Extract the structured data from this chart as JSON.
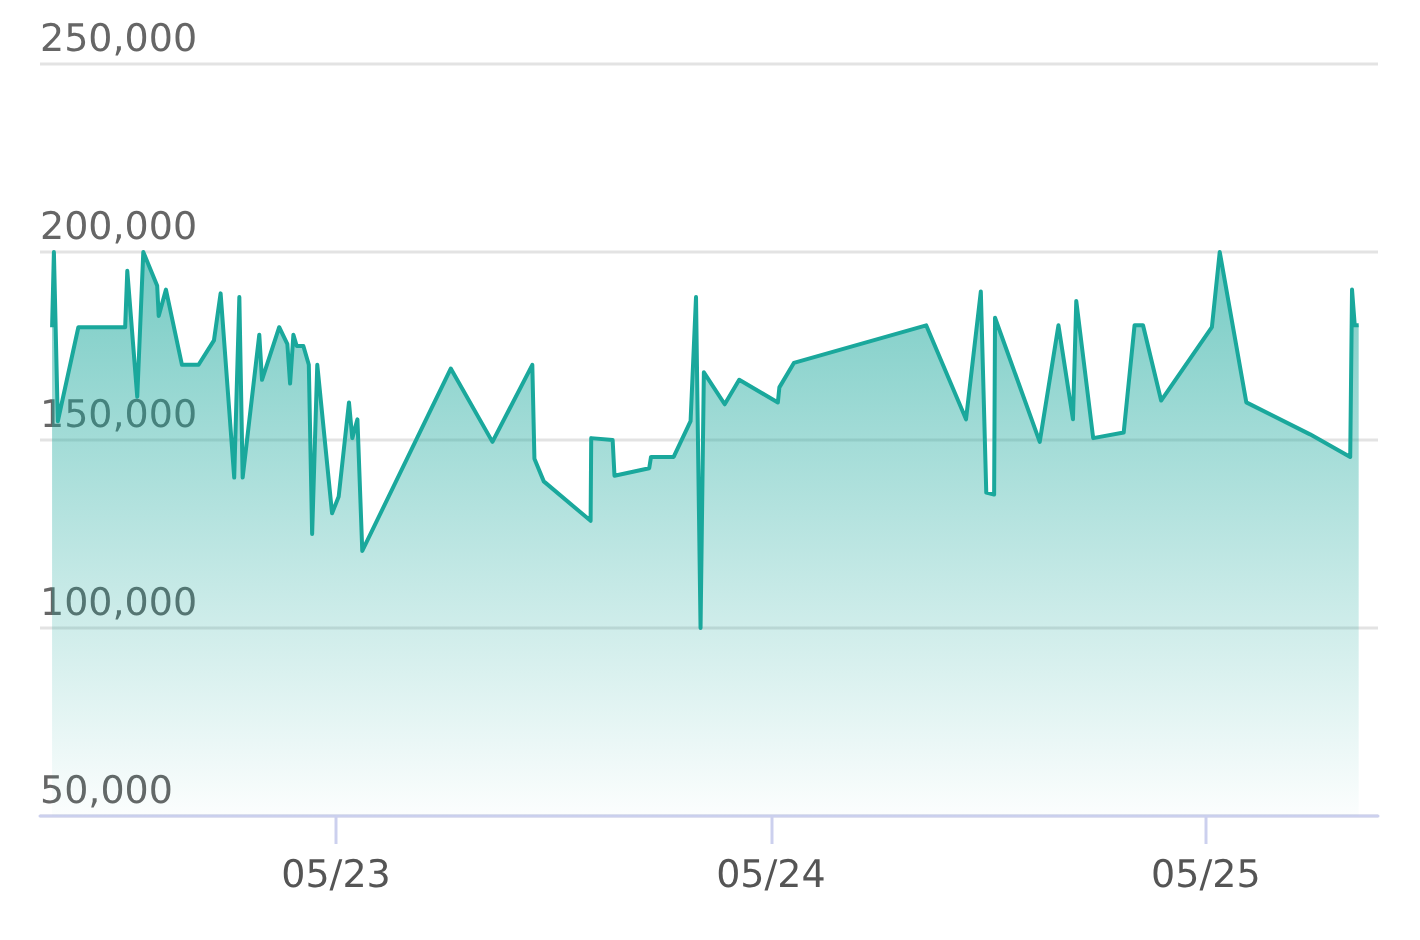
{
  "chart_data": {
    "type": "area",
    "x": [
      "--05-22T08:20",
      "--05-22T08:26",
      "--05-22T08:39",
      "--05-22T09:47",
      "--05-22T12:22",
      "--05-22T12:29",
      "--05-22T13:02",
      "--05-22T13:22",
      "--05-22T14:08",
      "--05-22T14:13",
      "--05-22T14:37",
      "--05-22T15:30",
      "--05-22T16:25",
      "--05-22T17:16",
      "--05-22T17:38",
      "--05-22T18:23",
      "--05-22T18:40",
      "--05-22T18:51",
      "--05-22T19:46",
      "--05-22T19:55",
      "--05-22T20:52",
      "--05-22T21:19",
      "--05-22T21:28",
      "--05-22T21:39",
      "--05-22T21:50",
      "--05-22T22:12",
      "--05-22T22:30",
      "--05-22T22:41",
      "--05-22T22:58",
      "--05-22T23:47",
      "--05-23T00:09",
      "--05-23T00:43",
      "--05-23T00:54",
      "--05-23T01:11",
      "--05-23T01:27",
      "--05-23T06:20",
      "--05-23T08:38",
      "--05-23T10:50",
      "--05-23T10:57",
      "--05-23T11:28",
      "--05-23T14:03",
      "--05-23T14:05",
      "--05-23T15:16",
      "--05-23T15:22",
      "--05-23T17:17",
      "--05-23T17:23",
      "--05-23T18:38",
      "--05-23T19:34",
      "--05-23T19:52",
      "--05-23T20:07",
      "--05-23T20:18",
      "--05-23T21:27",
      "--05-23T22:15",
      "--05-24T00:23",
      "--05-24T00:28",
      "--05-24T01:16",
      "--05-24T08:34",
      "--05-24T10:46",
      "--05-24T11:35",
      "--05-24T11:53",
      "--05-24T12:19",
      "--05-24T12:22",
      "--05-24T14:50",
      "--05-24T15:52",
      "--05-24T16:40",
      "--05-24T16:51",
      "--05-24T17:47",
      "--05-24T19:28",
      "--05-24T20:04",
      "--05-24T20:32",
      "--05-24T21:32",
      "--05-25T00:20",
      "--05-25T00:46",
      "--05-25T02:14",
      "--05-25T05:45",
      "--05-25T07:58",
      "--05-25T08:04",
      "--05-25T08:13",
      "--05-25T08:26"
    ],
    "series": [
      {
        "color": "#1aa89c",
        "values": [
          180000,
          200000,
          155000,
          180000,
          180000,
          195000,
          161500,
          200000,
          191000,
          183000,
          190000,
          170000,
          170000,
          176500,
          189000,
          140000,
          188000,
          140000,
          178000,
          166000,
          180000,
          175500,
          165000,
          178000,
          175000,
          175000,
          170000,
          125000,
          170000,
          130500,
          135000,
          160000,
          150500,
          155500,
          120500,
          169000,
          149500,
          170000,
          145000,
          139000,
          128500,
          150500,
          150000,
          140500,
          142500,
          145500,
          145500,
          155000,
          188000,
          100000,
          168000,
          159500,
          166000,
          160000,
          164000,
          170500,
          180500,
          155500,
          189500,
          136000,
          135500,
          182500,
          149500,
          180500,
          155500,
          187000,
          150500,
          152000,
          180500,
          180500,
          160500,
          180000,
          200000,
          160000,
          151500,
          145500,
          190000,
          180500,
          180500
        ]
      }
    ],
    "xlim": [
      "--05-22T07:40",
      "--05-25T09:30"
    ],
    "xticks": [
      {
        "value": "--05-23",
        "label": "05/23"
      },
      {
        "value": "--05-24",
        "label": "05/24"
      },
      {
        "value": "--05-25",
        "label": "05/25"
      }
    ],
    "ylim": [
      50000,
      250000
    ],
    "yticks": [
      {
        "value": 50000,
        "label": "50,000"
      },
      {
        "value": 100000,
        "label": "100,000"
      },
      {
        "value": 150000,
        "label": "150,000"
      },
      {
        "value": 200000,
        "label": "200,000"
      },
      {
        "value": 250000,
        "label": "250,000"
      }
    ],
    "grid": "y",
    "marker": "none"
  }
}
